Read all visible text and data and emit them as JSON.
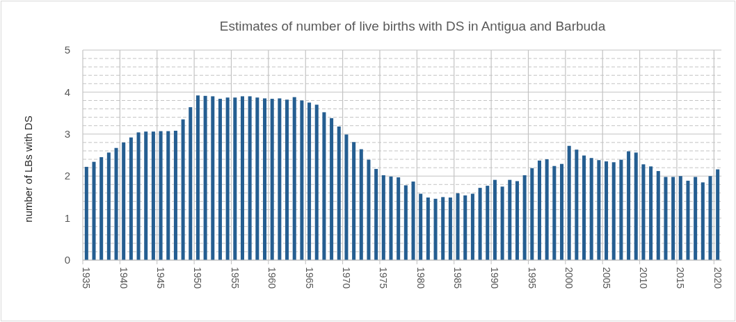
{
  "chart_data": {
    "type": "bar",
    "title": "Estimates of number of live births with DS in Antigua and Barbuda",
    "ylabel": "number of LBs with DS",
    "categories": [
      "1935",
      null,
      null,
      null,
      null,
      "1940",
      null,
      null,
      null,
      null,
      "1945",
      null,
      null,
      null,
      null,
      "1950",
      null,
      null,
      null,
      null,
      "1955",
      null,
      null,
      null,
      null,
      "1960",
      null,
      null,
      null,
      null,
      "1965",
      null,
      null,
      null,
      null,
      "1970",
      null,
      null,
      null,
      null,
      "1975",
      null,
      null,
      null,
      null,
      "1980",
      null,
      null,
      null,
      null,
      "1985",
      null,
      null,
      null,
      null,
      "1990",
      null,
      null,
      null,
      null,
      "1995",
      null,
      null,
      null,
      null,
      "2000",
      null,
      null,
      null,
      null,
      "2005",
      null,
      null,
      null,
      null,
      "2010",
      null,
      null,
      null,
      null,
      "2015",
      null,
      null,
      null,
      null,
      "2020"
    ],
    "values": [
      2.22,
      2.34,
      2.45,
      2.56,
      2.67,
      2.8,
      2.92,
      3.04,
      3.06,
      3.06,
      3.07,
      3.07,
      3.08,
      3.35,
      3.64,
      3.92,
      3.91,
      3.9,
      3.84,
      3.87,
      3.87,
      3.9,
      3.9,
      3.87,
      3.85,
      3.84,
      3.85,
      3.82,
      3.88,
      3.8,
      3.75,
      3.7,
      3.52,
      3.38,
      3.18,
      2.99,
      2.81,
      2.64,
      2.39,
      2.17,
      2.02,
      1.99,
      1.97,
      1.78,
      1.87,
      1.58,
      1.49,
      1.46,
      1.5,
      1.49,
      1.59,
      1.54,
      1.58,
      1.72,
      1.77,
      1.91,
      1.75,
      1.91,
      1.88,
      2.02,
      2.19,
      2.37,
      2.4,
      2.24,
      2.29,
      2.72,
      2.63,
      2.49,
      2.43,
      2.38,
      2.35,
      2.33,
      2.39,
      2.59,
      2.56,
      2.28,
      2.23,
      2.12,
      1.98,
      1.98,
      2.0,
      1.89,
      1.98,
      1.85,
      2.0,
      2.16
    ],
    "color": "#255e91",
    "ylim": [
      0,
      5
    ],
    "yticks": [
      0,
      {
        "value": 0.2,
        "label": null
      },
      {
        "value": 0.4,
        "label": null
      },
      {
        "value": 0.6,
        "label": null
      },
      {
        "value": 0.8,
        "label": null
      },
      1,
      {
        "value": 1.2,
        "label": null
      },
      {
        "value": 1.4,
        "label": null
      },
      {
        "value": 1.6,
        "label": null
      },
      {
        "value": 1.8,
        "label": null
      },
      2,
      {
        "value": 2.2,
        "label": null
      },
      {
        "value": 2.4,
        "label": null
      },
      {
        "value": 2.6,
        "label": null
      },
      {
        "value": 2.8,
        "label": null
      },
      3,
      {
        "value": 3.2,
        "label": null
      },
      {
        "value": 3.4,
        "label": null
      },
      {
        "value": 3.6,
        "label": null
      },
      {
        "value": 3.8,
        "label": null
      },
      4,
      {
        "value": 4.2,
        "label": null
      },
      {
        "value": 4.4,
        "label": null
      },
      {
        "value": 4.6,
        "label": null
      },
      {
        "value": 4.8,
        "label": null
      },
      5
    ],
    "grid": true
  }
}
